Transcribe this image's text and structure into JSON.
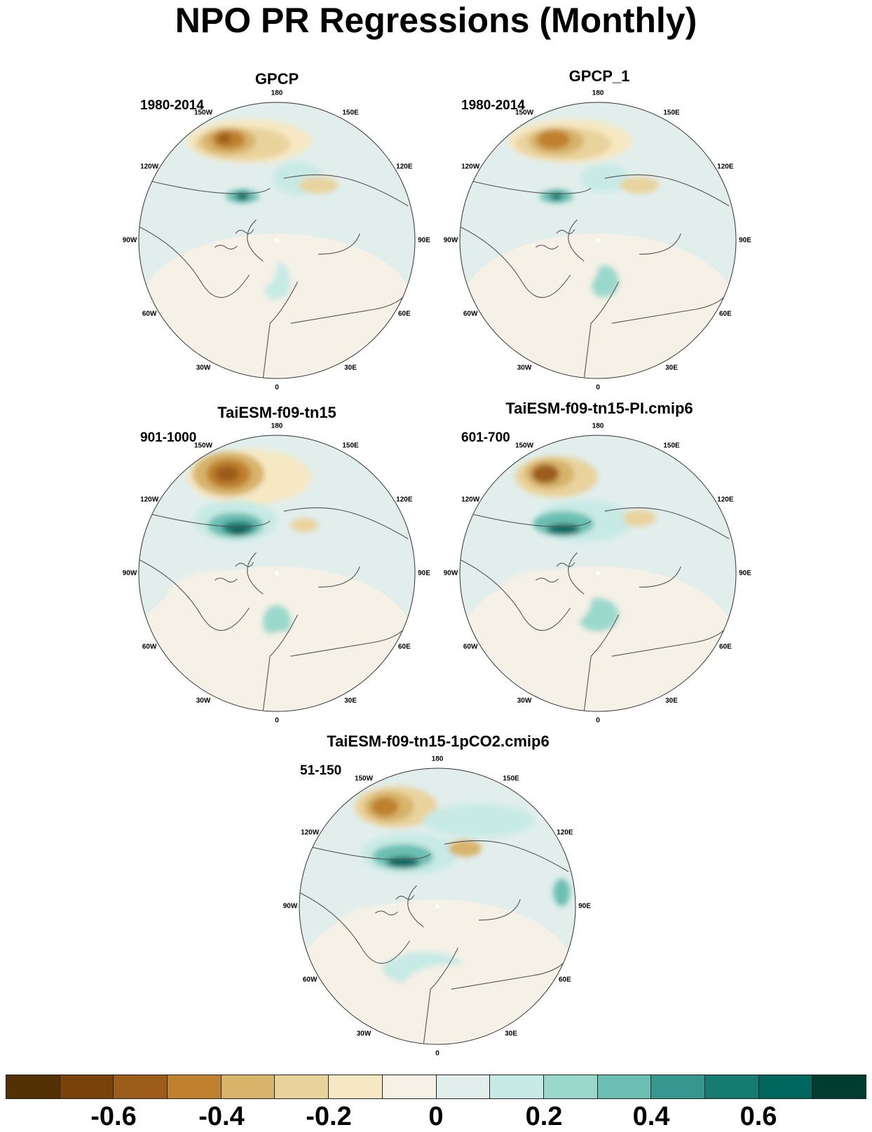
{
  "title": "NPO PR Regressions (Monthly)",
  "lon_labels": [
    "180",
    "150E",
    "120E",
    "90E",
    "60E",
    "30E",
    "0",
    "30W",
    "60W",
    "90W",
    "120W",
    "150W"
  ],
  "panels": [
    {
      "title": "GPCP",
      "period": "1980-2014"
    },
    {
      "title": "GPCP_1",
      "period": "1980-2014"
    },
    {
      "title": "TaiESM-f09-tn15",
      "period": "901-1000"
    },
    {
      "title": "TaiESM-f09-tn15-PI.cmip6",
      "period": "601-700"
    },
    {
      "title": "TaiESM-f09-tn15-1pCO2.cmip6",
      "period": "51-150"
    }
  ],
  "colorbar": {
    "colors": [
      "#543005",
      "#7a420b",
      "#9c5d1a",
      "#bf812d",
      "#d7b46a",
      "#e9d39d",
      "#f6e8c3",
      "#f5f1e6",
      "#e1eeec",
      "#c7eae5",
      "#9bd8cc",
      "#6cbfb2",
      "#35978f",
      "#167c72",
      "#01665e",
      "#003c30"
    ],
    "labels": [
      "-0.6",
      "-0.4",
      "-0.2",
      "0",
      "0.2",
      "0.4",
      "0.6"
    ]
  }
}
